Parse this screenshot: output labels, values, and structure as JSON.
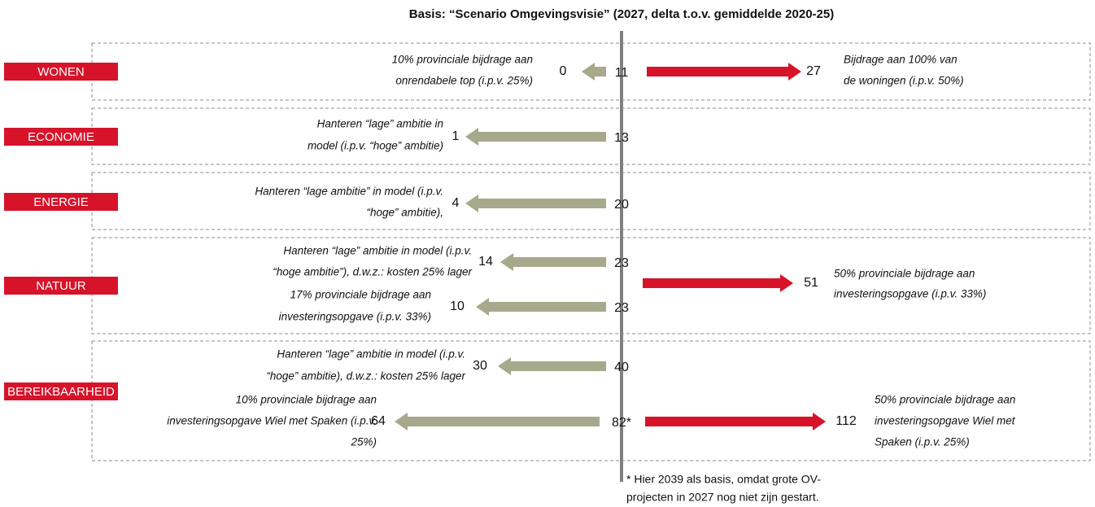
{
  "title": "Basis: “Scenario Omgevingsvisie” (2027, delta t.o.v. gemiddelde 2020-25)",
  "sections": [
    {
      "label": "WONEN",
      "rows": [
        {
          "base": 11,
          "left": {
            "value": 0,
            "lines": [
              "10% provinciale bijdrage aan",
              "onrendabele top (i.p.v. 25%)"
            ]
          }
        }
      ],
      "right": {
        "value": 27,
        "lines": [
          "Bijdrage aan 100% van",
          "de woningen (i.p.v. 50%)"
        ]
      }
    },
    {
      "label": "ECONOMIE",
      "rows": [
        {
          "base": 13,
          "left": {
            "value": 1,
            "lines": [
              "Hanteren “lage” ambitie in",
              "model (i.p.v. “hoge” ambitie)"
            ]
          }
        }
      ]
    },
    {
      "label": "ENERGIE",
      "rows": [
        {
          "base": 20,
          "left": {
            "value": 4,
            "lines": [
              "Hanteren “lage ambitie” in model (i.p.v.",
              "“hoge” ambitie),"
            ]
          }
        }
      ]
    },
    {
      "label": "NATUUR",
      "rows": [
        {
          "base": 23,
          "left": {
            "value": 14,
            "lines": [
              "Hanteren “lage” ambitie in model (i.p.v.",
              "“hoge ambitie”), d.w.z.: kosten 25% lager"
            ]
          }
        },
        {
          "base": 23,
          "left": {
            "value": 10,
            "lines": [
              "17% provinciale bijdrage aan",
              "investeringsopgave (i.p.v. 33%)"
            ]
          }
        }
      ],
      "right": {
        "value": 51,
        "lines": [
          "50% provinciale bijdrage aan",
          "investeringsopgave (i.p.v. 33%)"
        ]
      }
    },
    {
      "label": "BEREIKBAARHEID",
      "rows": [
        {
          "base": 40,
          "left": {
            "value": 30,
            "lines": [
              "Hanteren “lage” ambitie in model (i.p.v.",
              "“hoge” ambitie), d.w.z.: kosten 25% lager"
            ]
          }
        },
        {
          "base": "82*",
          "left": {
            "value": 64,
            "lines": [
              "10% provinciale bijdrage aan",
              "investeringsopgave Wiel met Spaken (i.p.v.",
              "25%)"
            ]
          }
        }
      ],
      "right": {
        "value": 112,
        "lines": [
          "50% provinciale bijdrage aan",
          "investeringsopgave Wiel met",
          "Spaken (i.p.v. 25%)"
        ]
      }
    }
  ],
  "footnote": [
    "* Hier 2039 als basis, omdat grote OV-",
    "projecten in 2027 nog niet zijn gestart."
  ]
}
